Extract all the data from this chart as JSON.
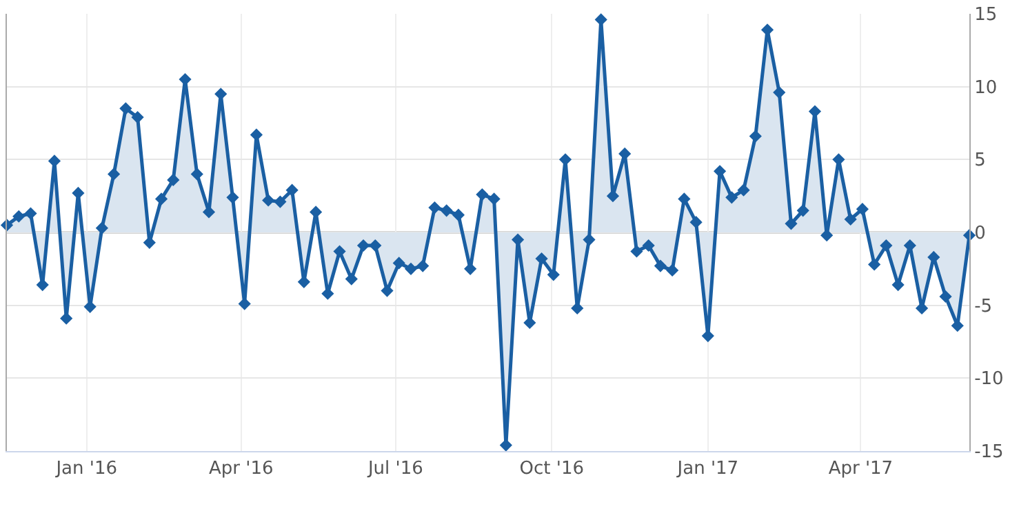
{
  "chart_data": {
    "type": "area",
    "x": [
      "2015-11-15",
      "2015-11-22",
      "2015-11-29",
      "2015-12-06",
      "2015-12-13",
      "2015-12-20",
      "2015-12-27",
      "2016-01-03",
      "2016-01-10",
      "2016-01-17",
      "2016-01-24",
      "2016-01-31",
      "2016-02-07",
      "2016-02-14",
      "2016-02-21",
      "2016-02-28",
      "2016-03-06",
      "2016-03-13",
      "2016-03-20",
      "2016-03-27",
      "2016-04-03",
      "2016-04-10",
      "2016-04-17",
      "2016-04-24",
      "2016-05-01",
      "2016-05-08",
      "2016-05-15",
      "2016-05-22",
      "2016-05-29",
      "2016-06-05",
      "2016-06-12",
      "2016-06-19",
      "2016-06-26",
      "2016-07-03",
      "2016-07-10",
      "2016-07-17",
      "2016-07-24",
      "2016-07-31",
      "2016-08-07",
      "2016-08-14",
      "2016-08-21",
      "2016-08-28",
      "2016-09-04",
      "2016-09-11",
      "2016-09-18",
      "2016-09-25",
      "2016-10-02",
      "2016-10-09",
      "2016-10-16",
      "2016-10-23",
      "2016-10-30",
      "2016-11-06",
      "2016-11-13",
      "2016-11-20",
      "2016-11-27",
      "2016-12-04",
      "2016-12-11",
      "2016-12-18",
      "2016-12-25",
      "2017-01-01",
      "2017-01-08",
      "2017-01-15",
      "2017-01-22",
      "2017-01-29",
      "2017-02-05",
      "2017-02-12",
      "2017-02-19",
      "2017-02-26",
      "2017-03-05",
      "2017-03-12",
      "2017-03-19",
      "2017-03-26",
      "2017-04-02",
      "2017-04-09",
      "2017-04-16",
      "2017-04-23",
      "2017-04-30",
      "2017-05-07",
      "2017-05-14",
      "2017-05-21",
      "2017-05-28",
      "2017-06-04"
    ],
    "values": [
      0.5,
      1.1,
      1.3,
      -3.6,
      4.9,
      -5.9,
      2.7,
      -5.1,
      0.3,
      4.0,
      8.5,
      7.9,
      -0.7,
      2.3,
      3.6,
      10.5,
      4.0,
      1.4,
      9.5,
      2.4,
      -4.9,
      6.7,
      2.2,
      2.1,
      2.9,
      -3.4,
      1.4,
      -4.2,
      -1.3,
      -3.2,
      -0.9,
      -0.9,
      -4.0,
      -2.1,
      -2.5,
      -2.3,
      1.7,
      1.5,
      1.2,
      -2.5,
      2.6,
      2.3,
      -14.6,
      -0.5,
      -6.2,
      -1.8,
      -2.9,
      5.0,
      -5.2,
      -0.5,
      14.6,
      2.5,
      5.4,
      -1.3,
      -0.9,
      -2.3,
      -2.6,
      2.3,
      0.7,
      -7.1,
      4.2,
      2.4,
      2.9,
      6.6,
      13.9,
      9.6,
      0.6,
      1.5,
      8.3,
      -0.2,
      5.0,
      0.9,
      1.6,
      -2.2,
      -0.9,
      -3.6,
      -0.9,
      -5.2,
      -1.7,
      -4.4,
      -6.4,
      -0.2
    ],
    "color": "#1a5fa3",
    "marker": "diamond",
    "grid": true,
    "xlim": [
      "2015-11-15",
      "2017-06-04"
    ],
    "xticks": [
      {
        "value": "2016-01-01",
        "label": "Jan '16"
      },
      {
        "value": "2016-04-01",
        "label": "Apr '16"
      },
      {
        "value": "2016-07-01",
        "label": "Jul '16"
      },
      {
        "value": "2016-10-01",
        "label": "Oct '16"
      },
      {
        "value": "2017-01-01",
        "label": "Jan '17"
      },
      {
        "value": "2017-04-01",
        "label": "Apr '17"
      }
    ],
    "ylim": [
      -15,
      15
    ],
    "yticks": [
      -15,
      -10,
      -5,
      0,
      5,
      10,
      15
    ],
    "ref_lines": [
      {
        "axis": "y",
        "value": 0,
        "color": "#aaaaaa"
      }
    ]
  }
}
